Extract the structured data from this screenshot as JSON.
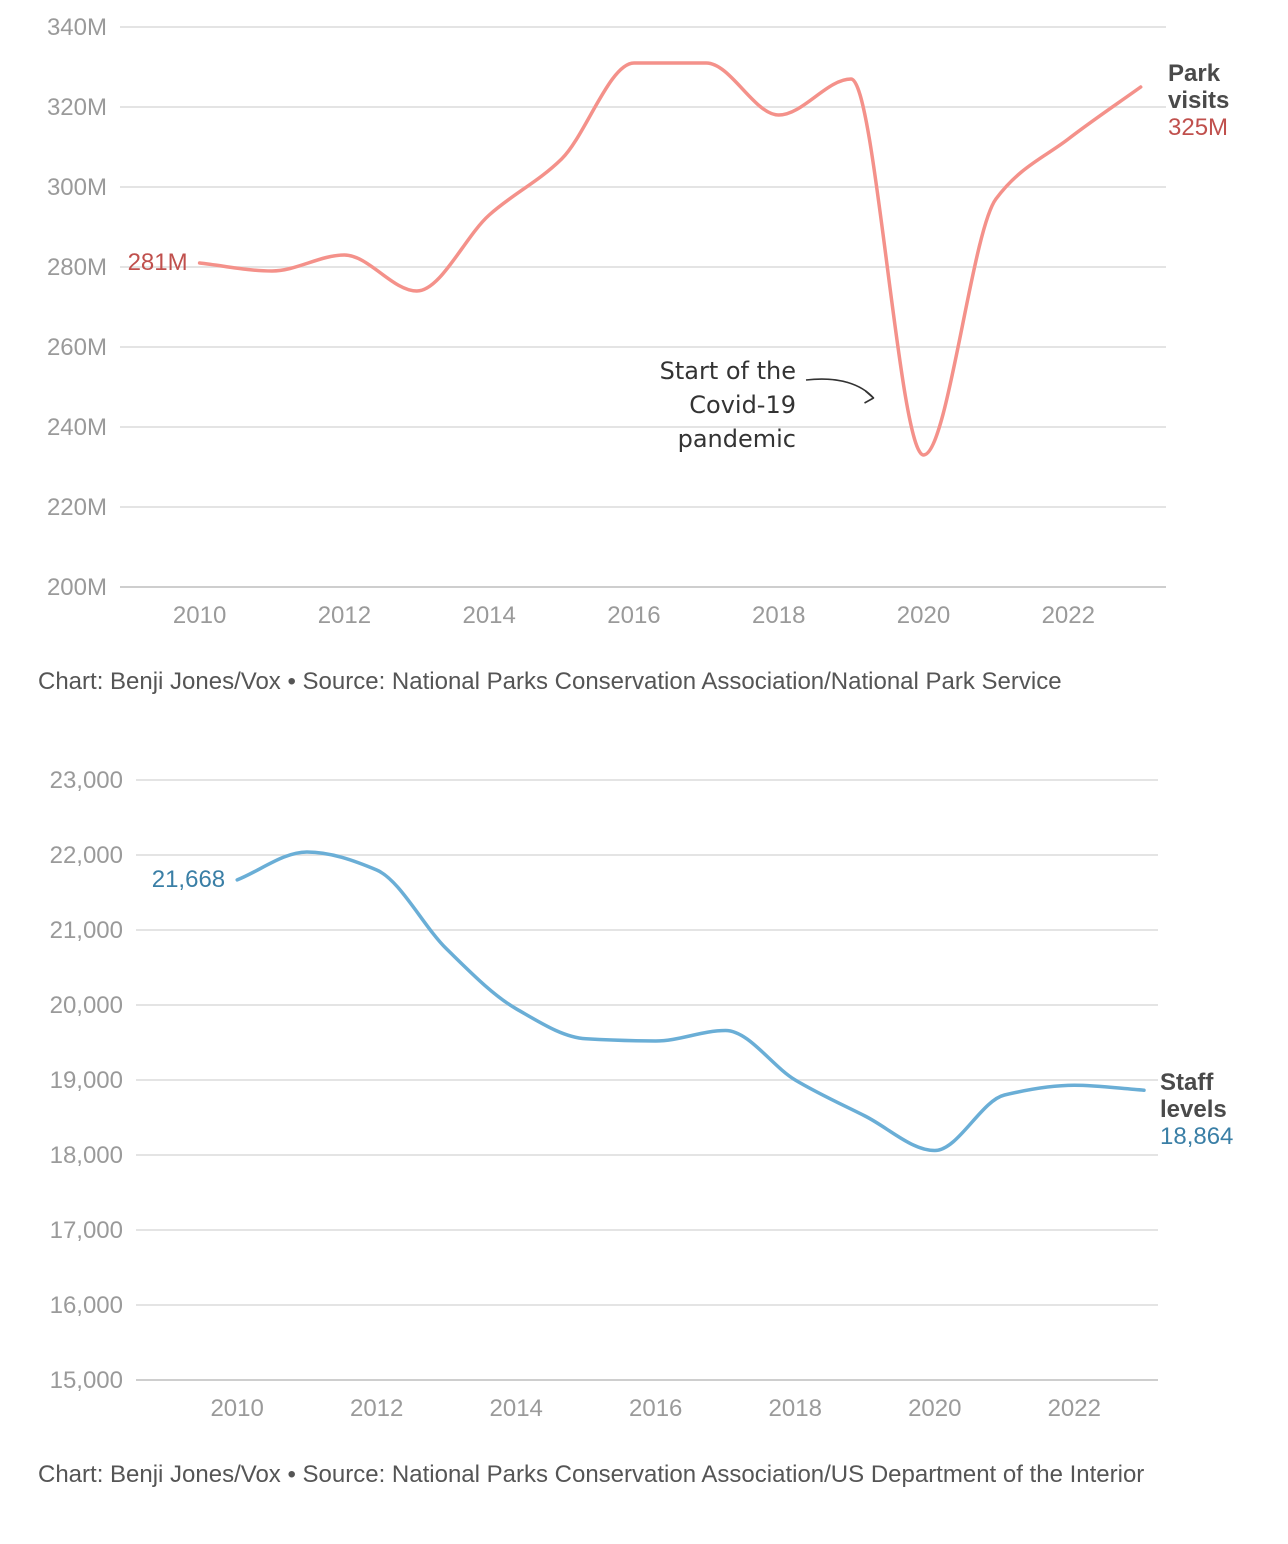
{
  "chart_data": [
    {
      "type": "line",
      "x": [
        2010,
        2011,
        2012,
        2013,
        2014,
        2015,
        2016,
        2017,
        2018,
        2019,
        2020,
        2021,
        2022,
        2023
      ],
      "series": [
        {
          "name": "Park visits",
          "values": [
            281,
            279,
            283,
            274,
            293,
            307,
            331,
            331,
            318,
            327,
            233,
            297,
            312,
            325
          ],
          "color": "#f4918a",
          "start_label": "281M",
          "end_label": "325M",
          "label_color": "#c0504d"
        }
      ],
      "yticks": [
        200,
        220,
        240,
        260,
        280,
        300,
        320,
        340
      ],
      "ytick_labels": [
        "200M",
        "220M",
        "240M",
        "260M",
        "280M",
        "300M",
        "320M",
        "340M"
      ],
      "xticks": [
        2010,
        2012,
        2014,
        2016,
        2018,
        2020,
        2022
      ],
      "xtick_labels": [
        "2010",
        "2012",
        "2014",
        "2016",
        "2018",
        "2020",
        "2022"
      ],
      "ylim": [
        200,
        340
      ],
      "xlim": [
        2008.9,
        2023.35
      ],
      "grid": true,
      "series_label_lines": [
        "Park",
        "visits"
      ],
      "annotation": {
        "lines": [
          "Start of the",
          "Covid-19",
          "pandemic"
        ],
        "points_to": [
          2020,
          233
        ]
      },
      "source": "Chart: Benji Jones/Vox • Source: National Parks Conservation Association/National Park Service"
    },
    {
      "type": "line",
      "x": [
        2010,
        2011,
        2012,
        2013,
        2014,
        2015,
        2016,
        2017,
        2018,
        2019,
        2020,
        2021,
        2022,
        2023
      ],
      "series": [
        {
          "name": "Staff levels",
          "values": [
            21668,
            22040,
            21800,
            20750,
            19950,
            19550,
            19520,
            19660,
            19000,
            18520,
            18060,
            18800,
            18930,
            18864
          ],
          "color": "#6aaed6",
          "start_label": "21,668",
          "end_label": "18,864",
          "label_color": "#3a7fa6"
        }
      ],
      "yticks": [
        15000,
        16000,
        17000,
        18000,
        19000,
        20000,
        21000,
        22000,
        23000
      ],
      "ytick_labels": [
        "15,000",
        "16,000",
        "17,000",
        "18,000",
        "19,000",
        "20,000",
        "21,000",
        "22,000",
        "23,000"
      ],
      "xticks": [
        2010,
        2012,
        2014,
        2016,
        2018,
        2020,
        2022
      ],
      "xtick_labels": [
        "2010",
        "2012",
        "2014",
        "2016",
        "2018",
        "2020",
        "2022"
      ],
      "ylim": [
        15000,
        23000
      ],
      "xlim": [
        2008.55,
        2023.2
      ],
      "grid": true,
      "series_label_lines": [
        "Staff",
        "levels"
      ],
      "source": "Chart: Benji Jones/Vox • Source: National Parks Conservation Association/US Department of the Interior"
    }
  ]
}
